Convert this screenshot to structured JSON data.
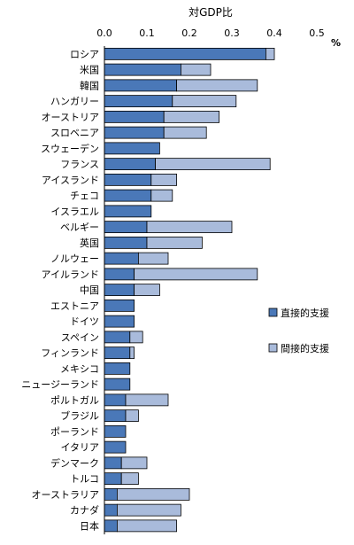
{
  "chart_data": {
    "type": "bar",
    "orientation": "horizontal",
    "stacked": true,
    "title": "対GDP比",
    "unit": "%",
    "xlim": [
      0,
      0.5
    ],
    "xticks": [
      "0.0",
      "0.1",
      "0.2",
      "0.3",
      "0.4",
      "0.5"
    ],
    "grid": false,
    "legend_position": "right",
    "categories": [
      "ロシア",
      "米国",
      "韓国",
      "ハンガリー",
      "オーストリア",
      "スロベニア",
      "スウェーデン",
      "フランス",
      "アイスランド",
      "チェコ",
      "イスラエル",
      "ベルギー",
      "英国",
      "ノルウェー",
      "アイルランド",
      "中国",
      "エストニア",
      "ドイツ",
      "スペイン",
      "フィンランド",
      "メキシコ",
      "ニュージーランド",
      "ポルトガル",
      "ブラジル",
      "ポーランド",
      "イタリア",
      "デンマーク",
      "トルコ",
      "オーストラリア",
      "カナダ",
      "日本"
    ],
    "series": [
      {
        "name": "直接的支援",
        "color": "#4a78b8",
        "values": [
          0.38,
          0.18,
          0.17,
          0.16,
          0.14,
          0.14,
          0.13,
          0.12,
          0.11,
          0.11,
          0.11,
          0.1,
          0.1,
          0.08,
          0.07,
          0.07,
          0.07,
          0.07,
          0.06,
          0.06,
          0.06,
          0.06,
          0.05,
          0.05,
          0.05,
          0.05,
          0.04,
          0.04,
          0.03,
          0.03,
          0.03
        ]
      },
      {
        "name": "間接的支援",
        "color": "#a9bbdb",
        "values": [
          0.02,
          0.07,
          0.19,
          0.15,
          0.13,
          0.1,
          0.0,
          0.27,
          0.06,
          0.05,
          0.0,
          0.2,
          0.13,
          0.07,
          0.29,
          0.06,
          0.0,
          0.0,
          0.03,
          0.01,
          0.0,
          0.0,
          0.1,
          0.03,
          0.0,
          0.0,
          0.06,
          0.04,
          0.17,
          0.15,
          0.14
        ]
      }
    ]
  }
}
